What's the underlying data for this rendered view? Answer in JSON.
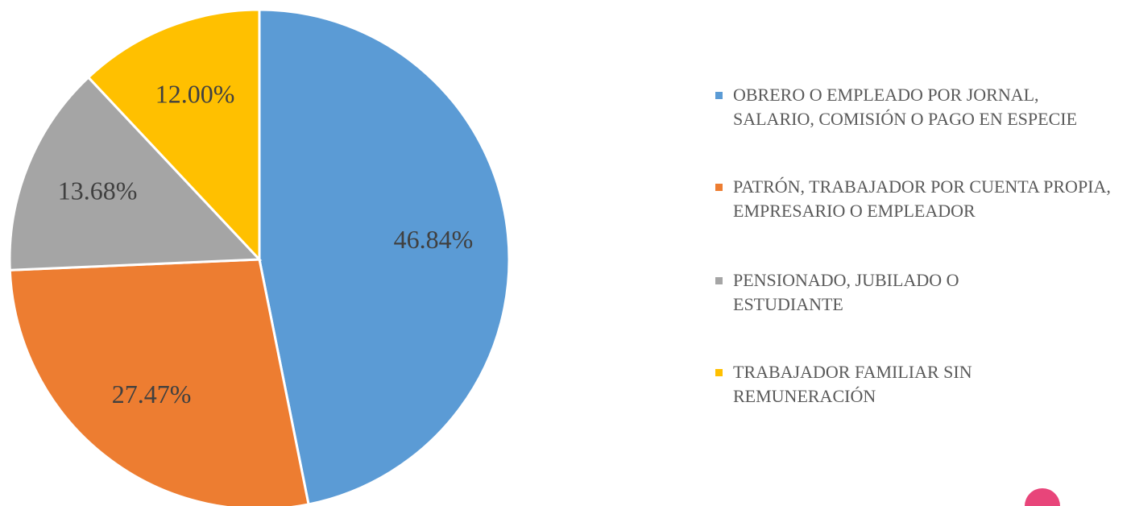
{
  "chart_data": {
    "type": "pie",
    "categories": [
      "OBRERO O EMPLEADO POR JORNAL, SALARIO, COMISIÓN O PAGO EN ESPECIE",
      "PATRÓN, TRABAJADOR POR CUENTA PROPIA, EMPRESARIO O EMPLEADOR",
      "PENSIONADO, JUBILADO O ESTUDIANTE",
      "TRABAJADOR FAMILIAR SIN REMUNERACIÓN"
    ],
    "values": [
      46.84,
      27.47,
      13.68,
      12.0
    ],
    "value_labels": [
      "46.84%",
      "27.47%",
      "13.68%",
      "12.00%"
    ],
    "colors": [
      "#5b9bd5",
      "#ed7d31",
      "#a5a5a5",
      "#ffc000"
    ],
    "legend": "right"
  }
}
